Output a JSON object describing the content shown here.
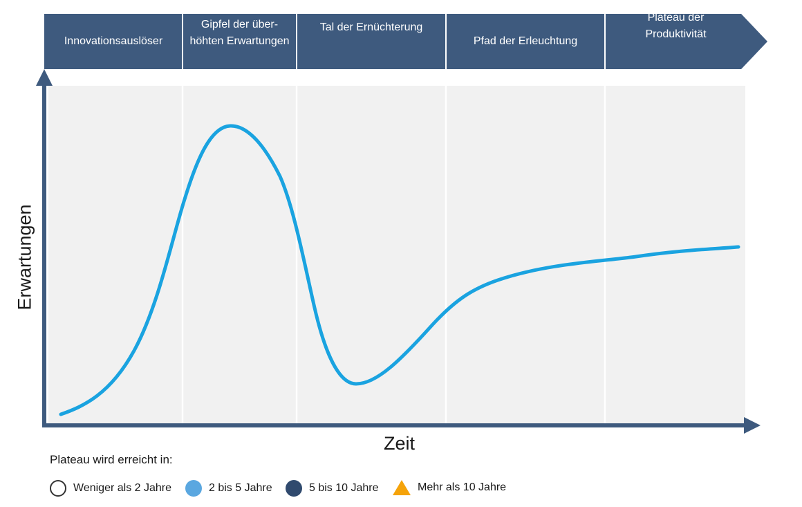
{
  "phases": [
    {
      "label": "Innovationsauslöser"
    },
    {
      "label": "Gipfel der über-\nhöhten Erwartungen"
    },
    {
      "label": "Tal der Ernüchterung"
    },
    {
      "label": "Pfad der Erleuchtung"
    },
    {
      "label": "Plateau der\nProduktivität"
    }
  ],
  "axes": {
    "y_title": "Erwartungen",
    "x_title": "Zeit"
  },
  "legend": {
    "heading": "Plateau wird erreicht in:",
    "items": [
      {
        "label": "Weniger als 2 Jahre",
        "marker": "circle-outline"
      },
      {
        "label": "2 bis 5 Jahre",
        "marker": "circle-light-blue"
      },
      {
        "label": "5 bis 10 Jahre",
        "marker": "circle-dark-blue"
      },
      {
        "label": "Mehr als 10 Jahre",
        "marker": "triangle-orange"
      }
    ]
  },
  "colors": {
    "banner": "#3e5a7e",
    "curve": "#1aa3e0",
    "axis": "#3e5a7e",
    "panel": "#f1f1f1"
  }
}
